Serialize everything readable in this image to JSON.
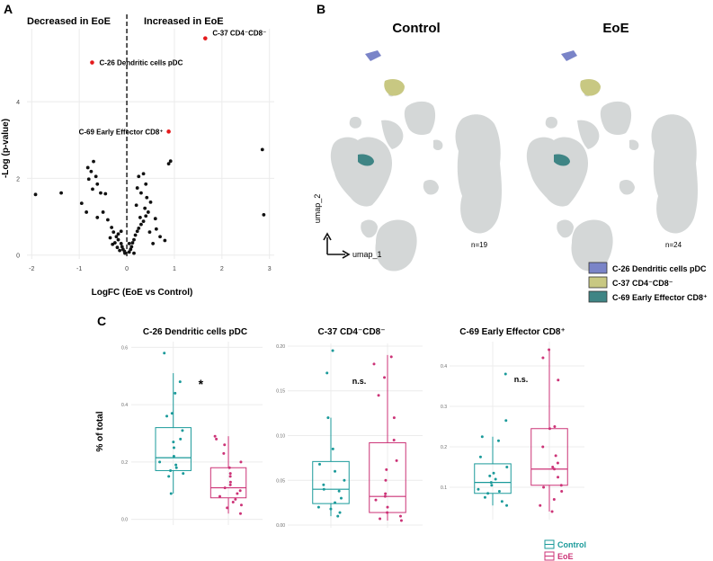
{
  "panels": {
    "a": "A",
    "b": "B",
    "c": "C"
  },
  "chart_data": [
    {
      "type": "scatter",
      "panel": "A",
      "header_left": "Decreased in EoE",
      "header_right": "Increased in EoE",
      "xlabel": "LogFC (EoE vs Control)",
      "ylabel": "-Log (p-value)",
      "xlim": [
        -2.1,
        3.1
      ],
      "ylim": [
        -0.1,
        5.9
      ],
      "xticks": [
        "-2",
        "-1",
        "0",
        "1",
        "2",
        "3"
      ],
      "xtick_values": [
        -2,
        -1,
        0,
        1,
        2,
        3
      ],
      "yticks": [
        "0",
        "2",
        "4"
      ],
      "ytick_values": [
        0,
        2,
        4
      ],
      "highlighted": [
        {
          "label": "C-37 CD4⁻CD8⁻",
          "x": 1.65,
          "y": 5.65,
          "color": "#e41a1c",
          "label_side": "right"
        },
        {
          "label": "C-26 Dendritic cells pDC",
          "x": -0.73,
          "y": 5.02,
          "color": "#e41a1c",
          "label_side": "right"
        },
        {
          "label": "C-69 Early Effector CD8⁺",
          "x": 0.88,
          "y": 3.22,
          "color": "#e41a1c",
          "label_side": "left"
        }
      ],
      "points": [
        [
          -1.92,
          1.58
        ],
        [
          -1.38,
          1.62
        ],
        [
          -0.82,
          2.28
        ],
        [
          -0.7,
          2.44
        ],
        [
          -0.75,
          2.18
        ],
        [
          -0.65,
          2.05
        ],
        [
          -0.8,
          1.98
        ],
        [
          -0.62,
          1.85
        ],
        [
          -0.72,
          1.72
        ],
        [
          -0.55,
          1.62
        ],
        [
          -0.45,
          1.6
        ],
        [
          -0.95,
          1.35
        ],
        [
          -0.85,
          1.12
        ],
        [
          -0.5,
          1.12
        ],
        [
          -0.62,
          0.98
        ],
        [
          -0.4,
          0.92
        ],
        [
          -0.32,
          0.72
        ],
        [
          -0.28,
          0.6
        ],
        [
          -0.22,
          0.48
        ],
        [
          -0.18,
          0.4
        ],
        [
          -0.12,
          0.3
        ],
        [
          -0.1,
          0.22
        ],
        [
          -0.08,
          0.15
        ],
        [
          -0.05,
          0.1
        ],
        [
          -0.04,
          0.05
        ],
        [
          -0.15,
          0.12
        ],
        [
          -0.2,
          0.2
        ],
        [
          -0.25,
          0.32
        ],
        [
          -0.3,
          0.28
        ],
        [
          -0.35,
          0.45
        ],
        [
          -0.18,
          0.55
        ],
        [
          -0.12,
          0.62
        ],
        [
          0.05,
          0.08
        ],
        [
          0.08,
          0.15
        ],
        [
          0.1,
          0.22
        ],
        [
          0.12,
          0.32
        ],
        [
          0.15,
          0.4
        ],
        [
          0.18,
          0.52
        ],
        [
          0.22,
          0.62
        ],
        [
          0.25,
          0.7
        ],
        [
          0.3,
          0.8
        ],
        [
          0.35,
          0.88
        ],
        [
          0.28,
          0.98
        ],
        [
          0.4,
          1.02
        ],
        [
          0.45,
          1.12
        ],
        [
          0.38,
          1.22
        ],
        [
          0.2,
          1.3
        ],
        [
          0.5,
          1.38
        ],
        [
          0.42,
          1.5
        ],
        [
          0.3,
          1.62
        ],
        [
          0.22,
          1.75
        ],
        [
          0.4,
          1.85
        ],
        [
          0.25,
          2.05
        ],
        [
          0.35,
          2.12
        ],
        [
          0.88,
          2.38
        ],
        [
          0.92,
          2.45
        ],
        [
          0.62,
          0.68
        ],
        [
          0.7,
          0.48
        ],
        [
          0.8,
          0.38
        ],
        [
          0.55,
          0.3
        ],
        [
          0.6,
          0.95
        ],
        [
          0.15,
          0.05
        ],
        [
          0.05,
          0.3
        ],
        [
          0.48,
          0.6
        ],
        [
          2.85,
          2.75
        ],
        [
          2.88,
          1.05
        ]
      ]
    },
    {
      "type": "box",
      "panel": "C",
      "title": "C-26 Dendritic cells pDC",
      "ylabel": "% of total",
      "ylim": [
        -0.02,
        0.62
      ],
      "yticks": [
        "0.0",
        "0.2",
        "0.4",
        "0.6"
      ],
      "ytick_values": [
        0.0,
        0.2,
        0.4,
        0.6
      ],
      "significance": "*",
      "groups": [
        {
          "name": "Control",
          "color": "#1a9a9a",
          "q1": 0.17,
          "median": 0.215,
          "q3": 0.32,
          "whisker_low": 0.09,
          "whisker_high": 0.51,
          "points": [
            0.58,
            0.48,
            0.44,
            0.37,
            0.36,
            0.31,
            0.28,
            0.27,
            0.25,
            0.22,
            0.2,
            0.19,
            0.18,
            0.17,
            0.16,
            0.15,
            0.09
          ]
        },
        {
          "name": "EoE",
          "color": "#cc3377",
          "q1": 0.075,
          "median": 0.11,
          "q3": 0.18,
          "whisker_low": 0.02,
          "whisker_high": 0.29,
          "points": [
            0.29,
            0.28,
            0.26,
            0.23,
            0.2,
            0.18,
            0.16,
            0.15,
            0.13,
            0.12,
            0.11,
            0.1,
            0.09,
            0.08,
            0.07,
            0.06,
            0.05,
            0.04,
            0.02
          ]
        }
      ]
    },
    {
      "type": "box",
      "panel": "C",
      "title": "C-37 CD4⁻CD8⁻",
      "ylim": [
        -0.003,
        0.203
      ],
      "yticks": [
        "0.00",
        "0.05",
        "0.10",
        "0.15",
        "0.20"
      ],
      "ytick_values": [
        0.0,
        0.05,
        0.1,
        0.15,
        0.2
      ],
      "significance": "n.s.",
      "groups": [
        {
          "name": "Control",
          "color": "#1a9a9a",
          "q1": 0.024,
          "median": 0.04,
          "q3": 0.071,
          "whisker_low": 0.01,
          "whisker_high": 0.12,
          "points": [
            0.195,
            0.17,
            0.12,
            0.085,
            0.068,
            0.06,
            0.05,
            0.045,
            0.04,
            0.038,
            0.03,
            0.025,
            0.02,
            0.018,
            0.014,
            0.01
          ]
        },
        {
          "name": "EoE",
          "color": "#cc3377",
          "q1": 0.014,
          "median": 0.032,
          "q3": 0.092,
          "whisker_low": 0.005,
          "whisker_high": 0.19,
          "points": [
            0.188,
            0.18,
            0.165,
            0.145,
            0.12,
            0.095,
            0.072,
            0.062,
            0.05,
            0.035,
            0.032,
            0.028,
            0.02,
            0.014,
            0.01,
            0.007,
            0.005
          ]
        }
      ]
    },
    {
      "type": "box",
      "panel": "C",
      "title": "C-69 Early Effector CD8⁺",
      "ylim": [
        0.02,
        0.46
      ],
      "yticks": [
        "0.1",
        "0.2",
        "0.3",
        "0.4"
      ],
      "ytick_values": [
        0.1,
        0.2,
        0.3,
        0.4
      ],
      "significance": "n.s.",
      "groups": [
        {
          "name": "Control",
          "color": "#1a9a9a",
          "q1": 0.085,
          "median": 0.112,
          "q3": 0.158,
          "whisker_low": 0.055,
          "whisker_high": 0.225,
          "points": [
            0.38,
            0.265,
            0.225,
            0.215,
            0.175,
            0.15,
            0.135,
            0.128,
            0.12,
            0.112,
            0.105,
            0.095,
            0.09,
            0.085,
            0.075,
            0.065,
            0.055
          ]
        },
        {
          "name": "EoE",
          "color": "#cc3377",
          "q1": 0.105,
          "median": 0.145,
          "q3": 0.245,
          "whisker_low": 0.04,
          "whisker_high": 0.44,
          "points": [
            0.44,
            0.42,
            0.365,
            0.25,
            0.245,
            0.2,
            0.178,
            0.16,
            0.15,
            0.145,
            0.125,
            0.105,
            0.1,
            0.09,
            0.07,
            0.055,
            0.04
          ]
        }
      ]
    }
  ],
  "umap": {
    "titles": [
      "Control",
      "EoE"
    ],
    "counts": [
      "n=19",
      "n=24"
    ],
    "axis_x": "umap_1",
    "axis_y": "umap_2",
    "cluster_color": "#d4d7d7",
    "legend": [
      {
        "label": "C-26 Dendritic cells pDC",
        "color": "#7a84c8"
      },
      {
        "label": "C-37 CD4⁻CD8⁻",
        "color": "#c8c882"
      },
      {
        "label": "C-69 Early Effector CD8⁺",
        "color": "#3f8585"
      }
    ]
  },
  "box_legend": [
    {
      "label": "Control",
      "color": "#1a9a9a"
    },
    {
      "label": "EoE",
      "color": "#cc3377"
    }
  ]
}
